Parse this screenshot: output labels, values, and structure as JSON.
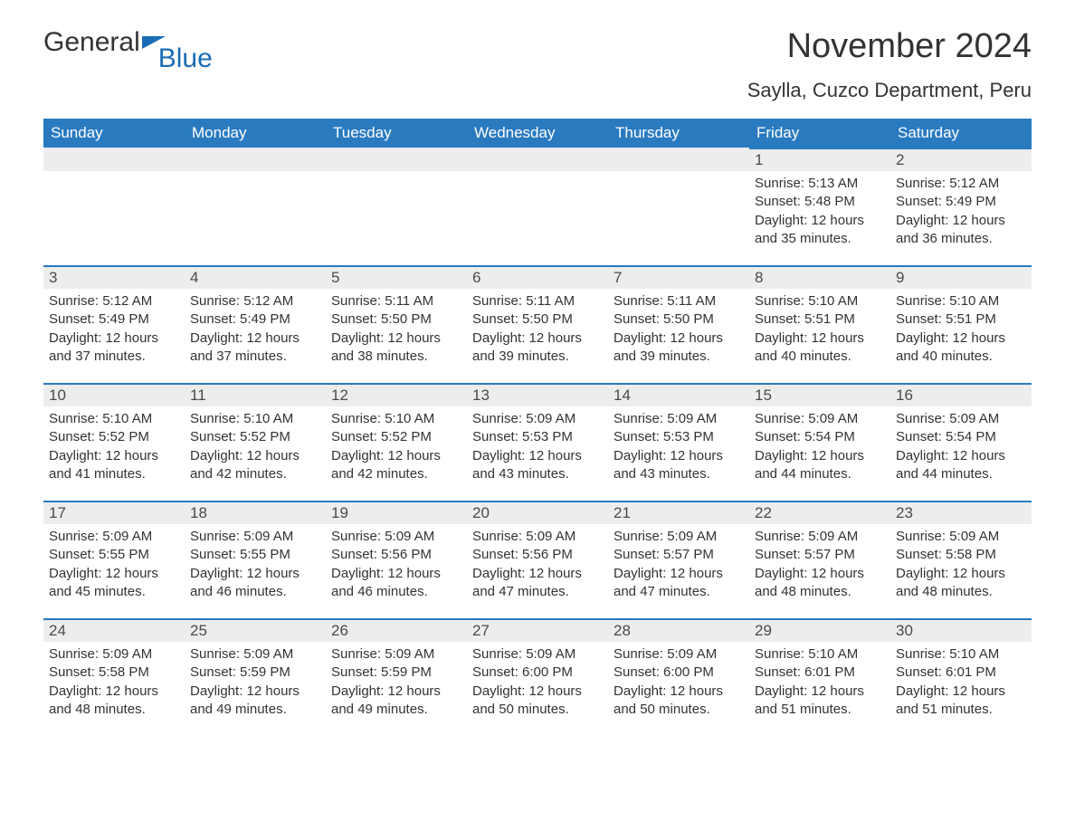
{
  "logo": {
    "text1": "General",
    "text2": "Blue"
  },
  "title": "November 2024",
  "location": "Saylla, Cuzco Department, Peru",
  "colors": {
    "header_bg": "#2a7ac0",
    "header_fg": "#ffffff",
    "strip_bg": "#ededed",
    "strip_border": "#2a7ac0",
    "body_bg": "#ffffff",
    "text": "#333333",
    "logo_accent": "#1a6db5"
  },
  "day_headers": [
    "Sunday",
    "Monday",
    "Tuesday",
    "Wednesday",
    "Thursday",
    "Friday",
    "Saturday"
  ],
  "weeks": [
    [
      {
        "day": "",
        "sunrise": "",
        "sunset": "",
        "daylight": ""
      },
      {
        "day": "",
        "sunrise": "",
        "sunset": "",
        "daylight": ""
      },
      {
        "day": "",
        "sunrise": "",
        "sunset": "",
        "daylight": ""
      },
      {
        "day": "",
        "sunrise": "",
        "sunset": "",
        "daylight": ""
      },
      {
        "day": "",
        "sunrise": "",
        "sunset": "",
        "daylight": ""
      },
      {
        "day": "1",
        "sunrise": "Sunrise: 5:13 AM",
        "sunset": "Sunset: 5:48 PM",
        "daylight": "Daylight: 12 hours and 35 minutes."
      },
      {
        "day": "2",
        "sunrise": "Sunrise: 5:12 AM",
        "sunset": "Sunset: 5:49 PM",
        "daylight": "Daylight: 12 hours and 36 minutes."
      }
    ],
    [
      {
        "day": "3",
        "sunrise": "Sunrise: 5:12 AM",
        "sunset": "Sunset: 5:49 PM",
        "daylight": "Daylight: 12 hours and 37 minutes."
      },
      {
        "day": "4",
        "sunrise": "Sunrise: 5:12 AM",
        "sunset": "Sunset: 5:49 PM",
        "daylight": "Daylight: 12 hours and 37 minutes."
      },
      {
        "day": "5",
        "sunrise": "Sunrise: 5:11 AM",
        "sunset": "Sunset: 5:50 PM",
        "daylight": "Daylight: 12 hours and 38 minutes."
      },
      {
        "day": "6",
        "sunrise": "Sunrise: 5:11 AM",
        "sunset": "Sunset: 5:50 PM",
        "daylight": "Daylight: 12 hours and 39 minutes."
      },
      {
        "day": "7",
        "sunrise": "Sunrise: 5:11 AM",
        "sunset": "Sunset: 5:50 PM",
        "daylight": "Daylight: 12 hours and 39 minutes."
      },
      {
        "day": "8",
        "sunrise": "Sunrise: 5:10 AM",
        "sunset": "Sunset: 5:51 PM",
        "daylight": "Daylight: 12 hours and 40 minutes."
      },
      {
        "day": "9",
        "sunrise": "Sunrise: 5:10 AM",
        "sunset": "Sunset: 5:51 PM",
        "daylight": "Daylight: 12 hours and 40 minutes."
      }
    ],
    [
      {
        "day": "10",
        "sunrise": "Sunrise: 5:10 AM",
        "sunset": "Sunset: 5:52 PM",
        "daylight": "Daylight: 12 hours and 41 minutes."
      },
      {
        "day": "11",
        "sunrise": "Sunrise: 5:10 AM",
        "sunset": "Sunset: 5:52 PM",
        "daylight": "Daylight: 12 hours and 42 minutes."
      },
      {
        "day": "12",
        "sunrise": "Sunrise: 5:10 AM",
        "sunset": "Sunset: 5:52 PM",
        "daylight": "Daylight: 12 hours and 42 minutes."
      },
      {
        "day": "13",
        "sunrise": "Sunrise: 5:09 AM",
        "sunset": "Sunset: 5:53 PM",
        "daylight": "Daylight: 12 hours and 43 minutes."
      },
      {
        "day": "14",
        "sunrise": "Sunrise: 5:09 AM",
        "sunset": "Sunset: 5:53 PM",
        "daylight": "Daylight: 12 hours and 43 minutes."
      },
      {
        "day": "15",
        "sunrise": "Sunrise: 5:09 AM",
        "sunset": "Sunset: 5:54 PM",
        "daylight": "Daylight: 12 hours and 44 minutes."
      },
      {
        "day": "16",
        "sunrise": "Sunrise: 5:09 AM",
        "sunset": "Sunset: 5:54 PM",
        "daylight": "Daylight: 12 hours and 44 minutes."
      }
    ],
    [
      {
        "day": "17",
        "sunrise": "Sunrise: 5:09 AM",
        "sunset": "Sunset: 5:55 PM",
        "daylight": "Daylight: 12 hours and 45 minutes."
      },
      {
        "day": "18",
        "sunrise": "Sunrise: 5:09 AM",
        "sunset": "Sunset: 5:55 PM",
        "daylight": "Daylight: 12 hours and 46 minutes."
      },
      {
        "day": "19",
        "sunrise": "Sunrise: 5:09 AM",
        "sunset": "Sunset: 5:56 PM",
        "daylight": "Daylight: 12 hours and 46 minutes."
      },
      {
        "day": "20",
        "sunrise": "Sunrise: 5:09 AM",
        "sunset": "Sunset: 5:56 PM",
        "daylight": "Daylight: 12 hours and 47 minutes."
      },
      {
        "day": "21",
        "sunrise": "Sunrise: 5:09 AM",
        "sunset": "Sunset: 5:57 PM",
        "daylight": "Daylight: 12 hours and 47 minutes."
      },
      {
        "day": "22",
        "sunrise": "Sunrise: 5:09 AM",
        "sunset": "Sunset: 5:57 PM",
        "daylight": "Daylight: 12 hours and 48 minutes."
      },
      {
        "day": "23",
        "sunrise": "Sunrise: 5:09 AM",
        "sunset": "Sunset: 5:58 PM",
        "daylight": "Daylight: 12 hours and 48 minutes."
      }
    ],
    [
      {
        "day": "24",
        "sunrise": "Sunrise: 5:09 AM",
        "sunset": "Sunset: 5:58 PM",
        "daylight": "Daylight: 12 hours and 48 minutes."
      },
      {
        "day": "25",
        "sunrise": "Sunrise: 5:09 AM",
        "sunset": "Sunset: 5:59 PM",
        "daylight": "Daylight: 12 hours and 49 minutes."
      },
      {
        "day": "26",
        "sunrise": "Sunrise: 5:09 AM",
        "sunset": "Sunset: 5:59 PM",
        "daylight": "Daylight: 12 hours and 49 minutes."
      },
      {
        "day": "27",
        "sunrise": "Sunrise: 5:09 AM",
        "sunset": "Sunset: 6:00 PM",
        "daylight": "Daylight: 12 hours and 50 minutes."
      },
      {
        "day": "28",
        "sunrise": "Sunrise: 5:09 AM",
        "sunset": "Sunset: 6:00 PM",
        "daylight": "Daylight: 12 hours and 50 minutes."
      },
      {
        "day": "29",
        "sunrise": "Sunrise: 5:10 AM",
        "sunset": "Sunset: 6:01 PM",
        "daylight": "Daylight: 12 hours and 51 minutes."
      },
      {
        "day": "30",
        "sunrise": "Sunrise: 5:10 AM",
        "sunset": "Sunset: 6:01 PM",
        "daylight": "Daylight: 12 hours and 51 minutes."
      }
    ]
  ]
}
